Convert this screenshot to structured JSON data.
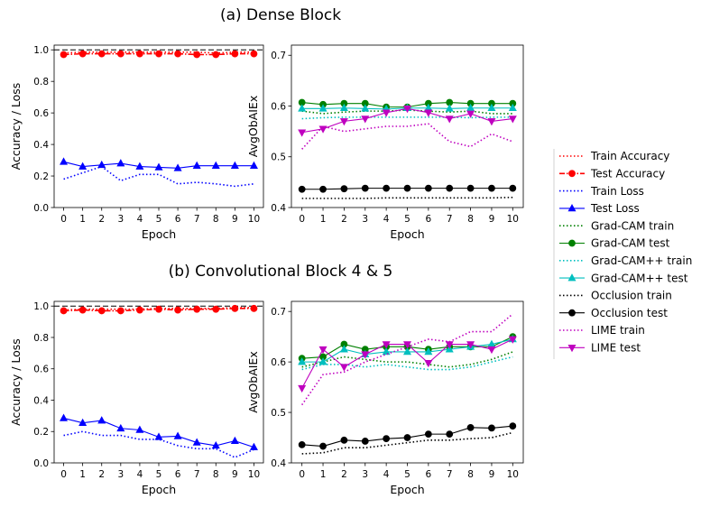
{
  "titles": {
    "dense": "(a) Dense Block",
    "conv": "(b) Convolutional Block 4 & 5"
  },
  "chart_data": [
    {
      "id": "dense_acc",
      "type": "line",
      "xlabel": "Epoch",
      "ylabel": "Accuracy / Loss",
      "xlim": [
        -0.5,
        10.5
      ],
      "ylim": [
        0.0,
        1.03
      ],
      "xticks": [
        0,
        1,
        2,
        3,
        4,
        5,
        6,
        7,
        8,
        9,
        10
      ],
      "yticks": [
        0.0,
        0.2,
        0.4,
        0.6,
        0.8,
        1.0
      ],
      "ytick_labels": [
        "0.0",
        "0.2",
        "0.4",
        "0.6",
        "0.8",
        "1.0"
      ],
      "reference_line": 1.0,
      "x": [
        0,
        1,
        2,
        3,
        4,
        5,
        6,
        7,
        8,
        9,
        10
      ],
      "series": [
        {
          "name": "Train Accuracy",
          "color": "#ff0000",
          "style": "dotted",
          "marker": "none",
          "values": [
            0.98,
            0.985,
            0.985,
            0.985,
            0.985,
            0.985,
            0.985,
            0.985,
            0.98,
            0.985,
            0.985
          ]
        },
        {
          "name": "Test Accuracy",
          "color": "#ff0000",
          "style": "dashdot",
          "marker": "circle",
          "values": [
            0.97,
            0.975,
            0.975,
            0.975,
            0.975,
            0.975,
            0.975,
            0.97,
            0.97,
            0.975,
            0.975
          ]
        },
        {
          "name": "Train Loss",
          "color": "#0000ff",
          "style": "dotted",
          "marker": "none",
          "values": [
            0.18,
            0.22,
            0.26,
            0.17,
            0.21,
            0.21,
            0.15,
            0.16,
            0.15,
            0.135,
            0.15
          ]
        },
        {
          "name": "Test Loss",
          "color": "#0000ff",
          "style": "solid",
          "marker": "triangle",
          "values": [
            0.29,
            0.26,
            0.27,
            0.28,
            0.26,
            0.255,
            0.25,
            0.265,
            0.265,
            0.265,
            0.265
          ]
        }
      ]
    },
    {
      "id": "dense_avg",
      "type": "line",
      "xlabel": "Epoch",
      "ylabel": "AvgObAIEx",
      "xlim": [
        -0.5,
        10.5
      ],
      "ylim": [
        0.4,
        0.72
      ],
      "xticks": [
        0,
        1,
        2,
        3,
        4,
        5,
        6,
        7,
        8,
        9,
        10
      ],
      "yticks": [
        0.4,
        0.5,
        0.6,
        0.7
      ],
      "ytick_labels": [
        "0.4",
        "0.5",
        "0.6",
        "0.7"
      ],
      "x": [
        0,
        1,
        2,
        3,
        4,
        5,
        6,
        7,
        8,
        9,
        10
      ],
      "series": [
        {
          "name": "Grad-CAM train",
          "color": "#008000",
          "style": "dotted",
          "marker": "none",
          "values": [
            0.59,
            0.585,
            0.588,
            0.59,
            0.59,
            0.592,
            0.59,
            0.588,
            0.59,
            0.585,
            0.585
          ]
        },
        {
          "name": "Grad-CAM test",
          "color": "#008000",
          "style": "solid",
          "marker": "circle",
          "values": [
            0.607,
            0.603,
            0.605,
            0.605,
            0.598,
            0.598,
            0.605,
            0.607,
            0.605,
            0.605,
            0.605
          ]
        },
        {
          "name": "Grad-CAM++ train",
          "color": "#00bfbf",
          "style": "dotted",
          "marker": "none",
          "values": [
            0.575,
            0.577,
            0.578,
            0.578,
            0.578,
            0.578,
            0.578,
            0.578,
            0.577,
            0.578,
            0.578
          ]
        },
        {
          "name": "Grad-CAM++ test",
          "color": "#00bfbf",
          "style": "solid",
          "marker": "triangle",
          "values": [
            0.595,
            0.595,
            0.596,
            0.595,
            0.594,
            0.596,
            0.596,
            0.595,
            0.596,
            0.596,
            0.596
          ]
        },
        {
          "name": "Occlusion train",
          "color": "#000000",
          "style": "dotted",
          "marker": "none",
          "values": [
            0.418,
            0.418,
            0.418,
            0.418,
            0.419,
            0.419,
            0.419,
            0.419,
            0.419,
            0.419,
            0.42
          ]
        },
        {
          "name": "Occlusion test",
          "color": "#000000",
          "style": "solid",
          "marker": "circle",
          "values": [
            0.436,
            0.436,
            0.437,
            0.438,
            0.438,
            0.438,
            0.438,
            0.438,
            0.438,
            0.438,
            0.438
          ]
        },
        {
          "name": "LIME train",
          "color": "#bf00bf",
          "style": "dotted",
          "marker": "none",
          "values": [
            0.515,
            0.56,
            0.55,
            0.555,
            0.56,
            0.56,
            0.565,
            0.53,
            0.52,
            0.545,
            0.53
          ]
        },
        {
          "name": "LIME test",
          "color": "#bf00bf",
          "style": "solid",
          "marker": "triangle-down",
          "values": [
            0.548,
            0.555,
            0.57,
            0.575,
            0.587,
            0.595,
            0.587,
            0.575,
            0.585,
            0.57,
            0.575
          ]
        }
      ]
    },
    {
      "id": "conv_acc",
      "type": "line",
      "xlabel": "Epoch",
      "ylabel": "Accuracy / Loss",
      "xlim": [
        -0.5,
        10.5
      ],
      "ylim": [
        0.0,
        1.03
      ],
      "xticks": [
        0,
        1,
        2,
        3,
        4,
        5,
        6,
        7,
        8,
        9,
        10
      ],
      "yticks": [
        0.0,
        0.2,
        0.4,
        0.6,
        0.8,
        1.0
      ],
      "ytick_labels": [
        "0.0",
        "0.2",
        "0.4",
        "0.6",
        "0.8",
        "1.0"
      ],
      "reference_line": 1.0,
      "x": [
        0,
        1,
        2,
        3,
        4,
        5,
        6,
        7,
        8,
        9,
        10
      ],
      "series": [
        {
          "name": "Train Accuracy",
          "color": "#ff0000",
          "style": "dotted",
          "marker": "none",
          "values": [
            0.975,
            0.98,
            0.98,
            0.98,
            0.98,
            0.985,
            0.985,
            0.985,
            0.985,
            0.99,
            0.99
          ]
        },
        {
          "name": "Test Accuracy",
          "color": "#ff0000",
          "style": "dashdot",
          "marker": "circle",
          "values": [
            0.97,
            0.975,
            0.97,
            0.97,
            0.975,
            0.98,
            0.975,
            0.98,
            0.98,
            0.985,
            0.985
          ]
        },
        {
          "name": "Train Loss",
          "color": "#0000ff",
          "style": "dotted",
          "marker": "none",
          "values": [
            0.175,
            0.2,
            0.175,
            0.175,
            0.15,
            0.15,
            0.11,
            0.09,
            0.09,
            0.035,
            0.085
          ]
        },
        {
          "name": "Test Loss",
          "color": "#0000ff",
          "style": "solid",
          "marker": "triangle",
          "values": [
            0.285,
            0.255,
            0.27,
            0.22,
            0.21,
            0.165,
            0.17,
            0.13,
            0.11,
            0.14,
            0.1
          ]
        }
      ]
    },
    {
      "id": "conv_avg",
      "type": "line",
      "xlabel": "Epoch",
      "ylabel": "AvgObAIEx",
      "xlim": [
        -0.5,
        10.5
      ],
      "ylim": [
        0.4,
        0.72
      ],
      "xticks": [
        0,
        1,
        2,
        3,
        4,
        5,
        6,
        7,
        8,
        9,
        10
      ],
      "yticks": [
        0.4,
        0.5,
        0.6,
        0.7
      ],
      "ytick_labels": [
        "0.4",
        "0.5",
        "0.6",
        "0.7"
      ],
      "x": [
        0,
        1,
        2,
        3,
        4,
        5,
        6,
        7,
        8,
        9,
        10
      ],
      "series": [
        {
          "name": "Grad-CAM train",
          "color": "#008000",
          "style": "dotted",
          "marker": "none",
          "values": [
            0.59,
            0.6,
            0.61,
            0.605,
            0.6,
            0.6,
            0.595,
            0.59,
            0.595,
            0.605,
            0.62
          ]
        },
        {
          "name": "Grad-CAM test",
          "color": "#008000",
          "style": "solid",
          "marker": "circle",
          "values": [
            0.607,
            0.61,
            0.635,
            0.625,
            0.63,
            0.63,
            0.625,
            0.63,
            0.63,
            0.63,
            0.65
          ]
        },
        {
          "name": "Grad-CAM++ train",
          "color": "#00bfbf",
          "style": "dotted",
          "marker": "none",
          "values": [
            0.585,
            0.595,
            0.595,
            0.59,
            0.595,
            0.59,
            0.585,
            0.585,
            0.59,
            0.6,
            0.61
          ]
        },
        {
          "name": "Grad-CAM++ test",
          "color": "#00bfbf",
          "style": "solid",
          "marker": "triangle",
          "values": [
            0.6,
            0.6,
            0.625,
            0.615,
            0.62,
            0.62,
            0.62,
            0.625,
            0.63,
            0.635,
            0.645
          ]
        },
        {
          "name": "Occlusion train",
          "color": "#000000",
          "style": "dotted",
          "marker": "none",
          "values": [
            0.418,
            0.42,
            0.43,
            0.43,
            0.435,
            0.44,
            0.445,
            0.445,
            0.448,
            0.45,
            0.46
          ]
        },
        {
          "name": "Occlusion test",
          "color": "#000000",
          "style": "solid",
          "marker": "circle",
          "values": [
            0.436,
            0.433,
            0.445,
            0.443,
            0.448,
            0.45,
            0.457,
            0.457,
            0.47,
            0.469,
            0.473
          ]
        },
        {
          "name": "LIME train",
          "color": "#bf00bf",
          "style": "dotted",
          "marker": "none",
          "values": [
            0.515,
            0.575,
            0.58,
            0.6,
            0.615,
            0.63,
            0.645,
            0.64,
            0.66,
            0.66,
            0.695
          ]
        },
        {
          "name": "LIME test",
          "color": "#bf00bf",
          "style": "solid",
          "marker": "triangle-down",
          "values": [
            0.548,
            0.625,
            0.59,
            0.615,
            0.635,
            0.635,
            0.598,
            0.635,
            0.635,
            0.625,
            0.645
          ]
        }
      ]
    }
  ],
  "legend": {
    "placement": "right",
    "items": [
      {
        "label": "Train Accuracy",
        "color": "#ff0000",
        "style": "dotted",
        "marker": "none"
      },
      {
        "label": "Test Accuracy",
        "color": "#ff0000",
        "style": "dashdot",
        "marker": "circle"
      },
      {
        "label": "Train Loss",
        "color": "#0000ff",
        "style": "dotted",
        "marker": "none"
      },
      {
        "label": "Test Loss",
        "color": "#0000ff",
        "style": "solid",
        "marker": "triangle"
      },
      {
        "label": "Grad-CAM train",
        "color": "#008000",
        "style": "dotted",
        "marker": "none"
      },
      {
        "label": "Grad-CAM test",
        "color": "#008000",
        "style": "solid",
        "marker": "circle"
      },
      {
        "label": "Grad-CAM++ train",
        "color": "#00bfbf",
        "style": "dotted",
        "marker": "none"
      },
      {
        "label": "Grad-CAM++ test",
        "color": "#00bfbf",
        "style": "solid",
        "marker": "triangle"
      },
      {
        "label": "Occlusion train",
        "color": "#000000",
        "style": "dotted",
        "marker": "none"
      },
      {
        "label": "Occlusion test",
        "color": "#000000",
        "style": "solid",
        "marker": "circle"
      },
      {
        "label": "LIME train",
        "color": "#bf00bf",
        "style": "dotted",
        "marker": "none"
      },
      {
        "label": "LIME test",
        "color": "#bf00bf",
        "style": "solid",
        "marker": "triangle-down"
      }
    ]
  }
}
